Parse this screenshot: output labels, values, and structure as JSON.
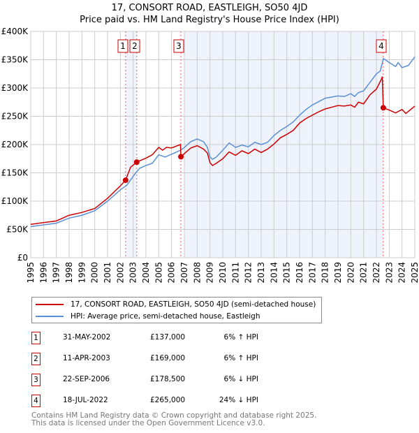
{
  "chart_data": {
    "type": "line",
    "title": "17, CONSORT ROAD, EASTLEIGH, SO50 4JD",
    "subtitle": "Price paid vs. HM Land Registry's House Price Index (HPI)",
    "xlim": [
      1995,
      2025
    ],
    "ylim": [
      0,
      400000
    ],
    "y_ticks": [
      "£0",
      "£50K",
      "£100K",
      "£150K",
      "£200K",
      "£250K",
      "£300K",
      "£350K",
      "£400K"
    ],
    "x_ticks": [
      "1995",
      "1996",
      "1997",
      "1998",
      "1999",
      "2000",
      "2001",
      "2002",
      "2003",
      "2004",
      "2005",
      "2006",
      "2007",
      "2008",
      "2009",
      "2010",
      "2011",
      "2012",
      "2013",
      "2014",
      "2015",
      "2016",
      "2017",
      "2018",
      "2019",
      "2020",
      "2021",
      "2022",
      "2023",
      "2024",
      "2025"
    ],
    "grid": true,
    "series": [
      {
        "name": "17, CONSORT ROAD, EASTLEIGH, SO50 4JD (semi-detached house)",
        "color": "#cc0000",
        "points": [
          [
            1995,
            59
          ],
          [
            1996,
            62
          ],
          [
            1997,
            65
          ],
          [
            1998,
            75
          ],
          [
            1999,
            80
          ],
          [
            2000,
            87
          ],
          [
            2001,
            105
          ],
          [
            2002,
            127
          ],
          [
            2002.41,
            137
          ],
          [
            2002.8,
            160
          ],
          [
            2003.28,
            169
          ],
          [
            2004,
            176
          ],
          [
            2004.5,
            182
          ],
          [
            2005,
            195
          ],
          [
            2005.3,
            190
          ],
          [
            2005.6,
            195
          ],
          [
            2006,
            194
          ],
          [
            2006.7,
            200
          ],
          [
            2006.73,
            178.5
          ],
          [
            2007,
            184
          ],
          [
            2007.5,
            194
          ],
          [
            2008,
            198
          ],
          [
            2008.5,
            192
          ],
          [
            2008.8,
            185
          ],
          [
            2009,
            168
          ],
          [
            2009.2,
            163
          ],
          [
            2009.5,
            167
          ],
          [
            2010,
            175
          ],
          [
            2010.5,
            187
          ],
          [
            2011,
            181
          ],
          [
            2011.5,
            189
          ],
          [
            2012,
            184
          ],
          [
            2012.5,
            192
          ],
          [
            2013,
            186
          ],
          [
            2013.5,
            192
          ],
          [
            2014,
            201
          ],
          [
            2014.5,
            212
          ],
          [
            2015,
            218
          ],
          [
            2015.5,
            225
          ],
          [
            2016,
            238
          ],
          [
            2016.5,
            246
          ],
          [
            2017,
            252
          ],
          [
            2017.5,
            258
          ],
          [
            2018,
            263
          ],
          [
            2018.5,
            266
          ],
          [
            2019,
            269
          ],
          [
            2019.5,
            268
          ],
          [
            2020,
            270
          ],
          [
            2020.3,
            266
          ],
          [
            2020.6,
            275
          ],
          [
            2021,
            272
          ],
          [
            2021.5,
            288
          ],
          [
            2022,
            298
          ],
          [
            2022.4,
            316
          ],
          [
            2022.46,
            320
          ],
          [
            2022.54,
            265
          ],
          [
            2023,
            261
          ],
          [
            2023.5,
            256
          ],
          [
            2024,
            262
          ],
          [
            2024.3,
            255
          ],
          [
            2025,
            268
          ]
        ]
      },
      {
        "name": "HPI: Average price, semi-detached house, Eastleigh",
        "color": "#5b8fd6",
        "points": [
          [
            1995,
            55
          ],
          [
            1996,
            58
          ],
          [
            1997,
            61
          ],
          [
            1998,
            70
          ],
          [
            1999,
            75
          ],
          [
            2000,
            83
          ],
          [
            2001,
            100
          ],
          [
            2002,
            120
          ],
          [
            2002.5,
            128
          ],
          [
            2003.2,
            150
          ],
          [
            2003.5,
            158
          ],
          [
            2004,
            163
          ],
          [
            2004.5,
            167
          ],
          [
            2005,
            182
          ],
          [
            2005.5,
            178
          ],
          [
            2006,
            183
          ],
          [
            2006.7,
            190
          ],
          [
            2007,
            195
          ],
          [
            2007.5,
            205
          ],
          [
            2008,
            210
          ],
          [
            2008.5,
            205
          ],
          [
            2008.8,
            195
          ],
          [
            2009,
            178
          ],
          [
            2009.2,
            174
          ],
          [
            2009.5,
            178
          ],
          [
            2010,
            190
          ],
          [
            2010.5,
            203
          ],
          [
            2011,
            195
          ],
          [
            2011.5,
            199
          ],
          [
            2012,
            196
          ],
          [
            2012.5,
            204
          ],
          [
            2013,
            200
          ],
          [
            2013.5,
            204
          ],
          [
            2014,
            216
          ],
          [
            2014.5,
            225
          ],
          [
            2015,
            232
          ],
          [
            2015.5,
            240
          ],
          [
            2016,
            252
          ],
          [
            2016.5,
            262
          ],
          [
            2017,
            270
          ],
          [
            2017.5,
            276
          ],
          [
            2018,
            282
          ],
          [
            2018.5,
            284
          ],
          [
            2019,
            286
          ],
          [
            2019.5,
            285
          ],
          [
            2020,
            290
          ],
          [
            2020.3,
            285
          ],
          [
            2020.6,
            292
          ],
          [
            2021,
            295
          ],
          [
            2021.5,
            310
          ],
          [
            2022,
            325
          ],
          [
            2022.3,
            330
          ],
          [
            2022.55,
            352
          ],
          [
            2023,
            345
          ],
          [
            2023.5,
            338
          ],
          [
            2023.7,
            345
          ],
          [
            2024,
            336
          ],
          [
            2024.5,
            340
          ],
          [
            2025,
            355
          ]
        ]
      }
    ],
    "sales": [
      {
        "label": "1",
        "year": 2002.41,
        "value": 137,
        "date": "31-MAY-2002",
        "price": "£137,000",
        "hpi": "6% ↑ HPI"
      },
      {
        "label": "2",
        "year": 2003.28,
        "value": 169,
        "date": "11-APR-2003",
        "price": "£169,000",
        "hpi": "6% ↑ HPI"
      },
      {
        "label": "3",
        "year": 2006.73,
        "value": 178.5,
        "date": "22-SEP-2006",
        "price": "£178,500",
        "hpi": "6% ↓ HPI"
      },
      {
        "label": "4",
        "year": 2022.54,
        "value": 265,
        "date": "18-JUL-2022",
        "price": "£265,000",
        "hpi": "24% ↓ HPI"
      }
    ],
    "shaded_ranges": [
      [
        2002.41,
        2003.28
      ],
      [
        2007.0,
        2022.54
      ]
    ],
    "legend_placement": "below"
  },
  "footer": [
    "Contains HM Land Registry data © Crown copyright and database right 2025.",
    "This data is licensed under the Open Government Licence v3.0."
  ]
}
